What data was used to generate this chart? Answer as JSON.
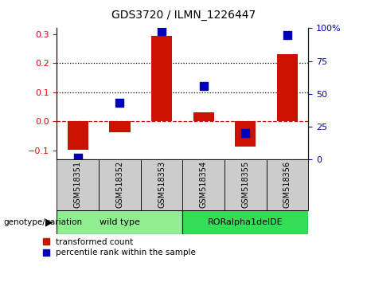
{
  "title": "GDS3720 / ILMN_1226447",
  "samples": [
    "GSM518351",
    "GSM518352",
    "GSM518353",
    "GSM518354",
    "GSM518355",
    "GSM518356"
  ],
  "transformed_count": [
    -0.098,
    -0.038,
    0.295,
    0.03,
    -0.085,
    0.23
  ],
  "percentile_rank": [
    1,
    43,
    98,
    56,
    20,
    95
  ],
  "ylim_left": [
    -0.13,
    0.32
  ],
  "ylim_right": [
    0,
    100
  ],
  "yticks_left": [
    -0.1,
    0.0,
    0.1,
    0.2,
    0.3
  ],
  "yticks_right": [
    0,
    25,
    50,
    75,
    100
  ],
  "hlines": [
    0.1,
    0.2
  ],
  "zero_line": 0.0,
  "groups": [
    {
      "label": "wild type",
      "indices": [
        0,
        1,
        2
      ],
      "color": "#90ee90"
    },
    {
      "label": "RORalpha1delDE",
      "indices": [
        3,
        4,
        5
      ],
      "color": "#33dd55"
    }
  ],
  "bar_color": "#cc1100",
  "dot_color": "#0000bb",
  "bar_width": 0.5,
  "dot_size": 50,
  "label_transformed": "transformed count",
  "label_percentile": "percentile rank within the sample",
  "genotype_label": "genotype/variation",
  "tick_label_color_left": "#cc1100",
  "tick_label_color_right": "#0000bb",
  "zero_line_color": "#cc1100",
  "grid_color": "#000000",
  "sample_box_color": "#cccccc",
  "fig_bg": "#ffffff"
}
